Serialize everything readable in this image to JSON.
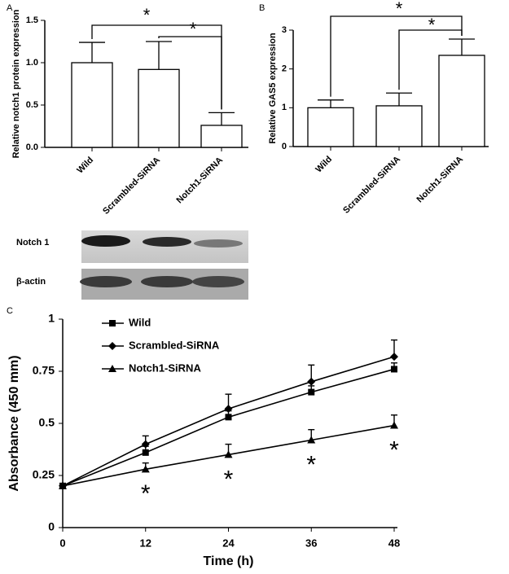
{
  "chart_data": [
    {
      "type": "bar",
      "panel": "A",
      "y_label": "Relative notch1 protein expression",
      "categories": [
        "Wild",
        "Scrambled-SiRNA",
        "Notch1-SiRNA"
      ],
      "values": [
        1.0,
        0.92,
        0.26
      ],
      "errors": [
        0.24,
        0.33,
        0.15
      ],
      "color": "#ffffff",
      "ylim": [
        0,
        1.5
      ],
      "yticks": [
        {
          "value": 0,
          "label": "0.0"
        },
        0.5,
        {
          "value": 1,
          "label": "1.0"
        },
        1.5
      ],
      "annotations": [
        "*",
        "*"
      ]
    },
    {
      "type": "bar",
      "panel": "B",
      "y_label": "Relative GAS5 expression",
      "categories": [
        "Wild",
        "Scrambled-SiRNA",
        "Notch1-SiRNA"
      ],
      "values": [
        1.0,
        1.05,
        2.35
      ],
      "errors": [
        0.2,
        0.33,
        0.42
      ],
      "color": "#ffffff",
      "ylim": [
        0,
        3
      ],
      "yticks": [
        0,
        1,
        2,
        3
      ],
      "annotations": [
        "*",
        "*"
      ]
    },
    {
      "type": "line",
      "panel": "C",
      "x_label": "Time (h)",
      "y_label": "Absorbance (450 mm)",
      "x": [
        0,
        12,
        24,
        36,
        48
      ],
      "xlim": [
        0,
        48
      ],
      "xticks": [
        0,
        12,
        24,
        36,
        48
      ],
      "ylim": [
        0,
        1
      ],
      "yticks": [
        0,
        0.25,
        0.5,
        0.75,
        1
      ],
      "series": [
        {
          "name": "Wild",
          "color": "#000000",
          "marker": "square",
          "values": [
            0.2,
            0.36,
            0.53,
            0.65,
            0.76
          ],
          "errors": [
            0,
            0.03,
            0.03,
            0.03,
            0.03
          ]
        },
        {
          "name": "Scrambled-SiRNA",
          "color": "#000000",
          "marker": "diamond",
          "values": [
            0.2,
            0.4,
            0.57,
            0.7,
            0.82
          ],
          "errors": [
            0,
            0.04,
            0.07,
            0.08,
            0.08
          ]
        },
        {
          "name": "Notch1-SiRNA",
          "color": "#000000",
          "marker": "triangle",
          "values": [
            0.2,
            0.28,
            0.35,
            0.42,
            0.49
          ],
          "errors": [
            0,
            0.03,
            0.05,
            0.05,
            0.05
          ]
        }
      ],
      "annotations": [
        "*",
        "*",
        "*",
        "*"
      ]
    }
  ],
  "blot": {
    "rows": [
      "Notch 1",
      "β-actin"
    ]
  }
}
